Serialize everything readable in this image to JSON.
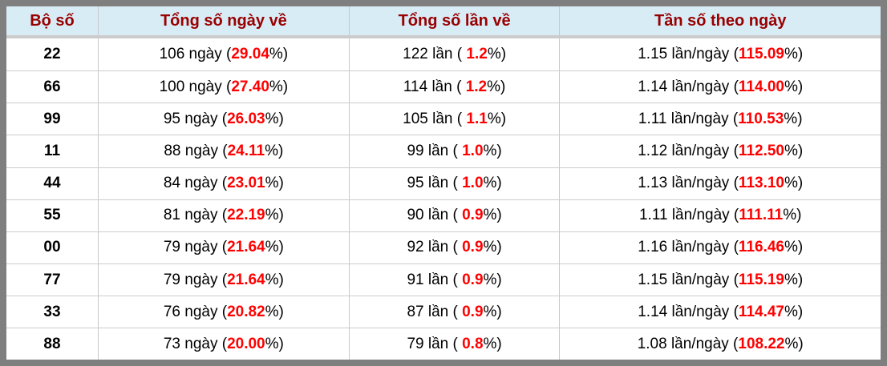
{
  "table": {
    "columns": [
      "Bộ số",
      "Tổng số ngày về",
      "Tổng số lần về",
      "Tần số theo ngày"
    ],
    "rows": [
      {
        "pair": "22",
        "days": {
          "pre": "106 ngày (",
          "val": "29.04",
          "post": "%)"
        },
        "times": {
          "pre": "122 lần ( ",
          "val": "1.2",
          "post": "%)"
        },
        "freq": {
          "pre": "1.15 lần/ngày (",
          "val": "115.09",
          "post": "%)"
        }
      },
      {
        "pair": "66",
        "days": {
          "pre": "100 ngày (",
          "val": "27.40",
          "post": "%)"
        },
        "times": {
          "pre": "114 lần ( ",
          "val": "1.2",
          "post": "%)"
        },
        "freq": {
          "pre": "1.14 lần/ngày (",
          "val": "114.00",
          "post": "%)"
        }
      },
      {
        "pair": "99",
        "days": {
          "pre": "95 ngày (",
          "val": "26.03",
          "post": "%)"
        },
        "times": {
          "pre": "105 lần ( ",
          "val": "1.1",
          "post": "%)"
        },
        "freq": {
          "pre": "1.11 lần/ngày (",
          "val": "110.53",
          "post": "%)"
        }
      },
      {
        "pair": "11",
        "days": {
          "pre": "88 ngày (",
          "val": "24.11",
          "post": "%)"
        },
        "times": {
          "pre": "99 lần ( ",
          "val": "1.0",
          "post": "%)"
        },
        "freq": {
          "pre": "1.12 lần/ngày (",
          "val": "112.50",
          "post": "%)"
        }
      },
      {
        "pair": "44",
        "days": {
          "pre": "84 ngày (",
          "val": "23.01",
          "post": "%)"
        },
        "times": {
          "pre": "95 lần ( ",
          "val": "1.0",
          "post": "%)"
        },
        "freq": {
          "pre": "1.13 lần/ngày (",
          "val": "113.10",
          "post": "%)"
        }
      },
      {
        "pair": "55",
        "days": {
          "pre": "81 ngày (",
          "val": "22.19",
          "post": "%)"
        },
        "times": {
          "pre": "90 lần ( ",
          "val": "0.9",
          "post": "%)"
        },
        "freq": {
          "pre": "1.11 lần/ngày (",
          "val": "111.11",
          "post": "%)"
        }
      },
      {
        "pair": "00",
        "days": {
          "pre": "79 ngày (",
          "val": "21.64",
          "post": "%)"
        },
        "times": {
          "pre": "92 lần ( ",
          "val": "0.9",
          "post": "%)"
        },
        "freq": {
          "pre": "1.16 lần/ngày (",
          "val": "116.46",
          "post": "%)"
        }
      },
      {
        "pair": "77",
        "days": {
          "pre": "79 ngày (",
          "val": "21.64",
          "post": "%)"
        },
        "times": {
          "pre": "91 lần ( ",
          "val": "0.9",
          "post": "%)"
        },
        "freq": {
          "pre": "1.15 lần/ngày (",
          "val": "115.19",
          "post": "%)"
        }
      },
      {
        "pair": "33",
        "days": {
          "pre": "76 ngày (",
          "val": "20.82",
          "post": "%)"
        },
        "times": {
          "pre": "87 lần ( ",
          "val": "0.9",
          "post": "%)"
        },
        "freq": {
          "pre": "1.14 lần/ngày (",
          "val": "114.47",
          "post": "%)"
        }
      },
      {
        "pair": "88",
        "days": {
          "pre": "73 ngày (",
          "val": "20.00",
          "post": "%)"
        },
        "times": {
          "pre": "79 lần ( ",
          "val": "0.8",
          "post": "%)"
        },
        "freq": {
          "pre": "1.08 lần/ngày (",
          "val": "108.22",
          "post": "%)"
        }
      }
    ]
  },
  "colors": {
    "frame_gray": "#7f7f7f",
    "header_background": "#d8ecf6",
    "header_text_maroon": "#990000",
    "value_red": "#ff0000",
    "grid_line": "#cccccc",
    "body_text": "#000000"
  }
}
